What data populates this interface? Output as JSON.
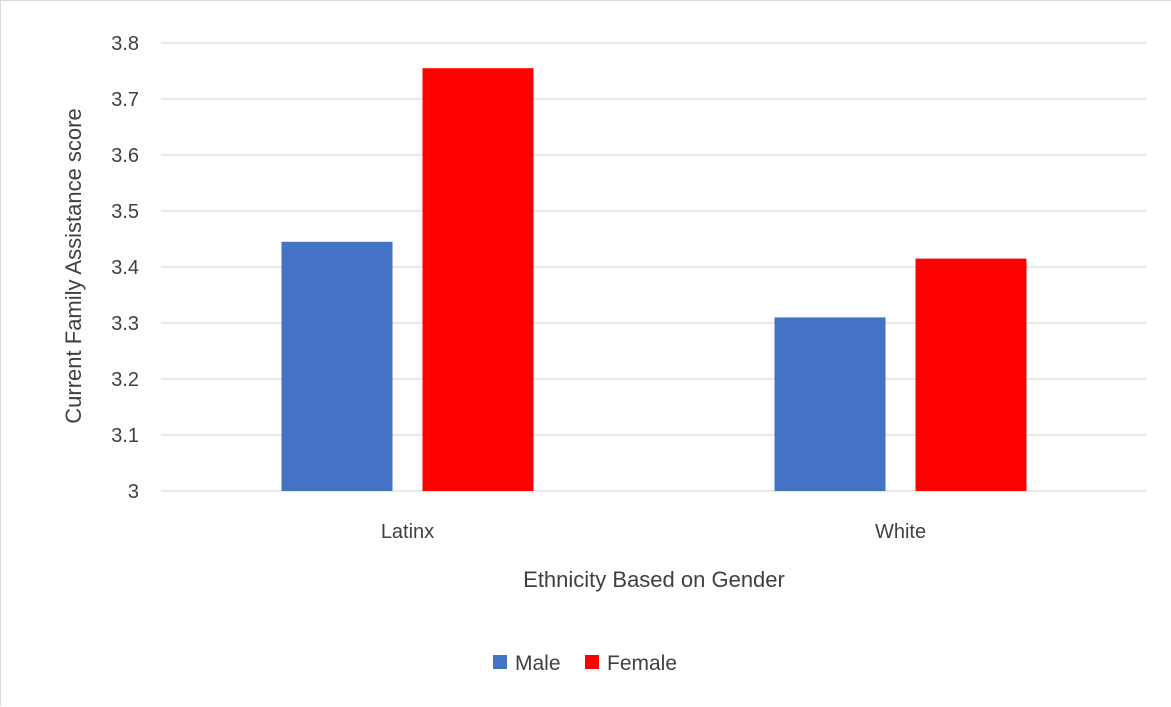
{
  "chart_data": {
    "type": "bar",
    "title": "",
    "xlabel": "Ethnicity Based on Gender",
    "ylabel": "Current Family Assistance score",
    "categories": [
      "Latinx",
      "White"
    ],
    "series": [
      {
        "name": "Male",
        "color": "#4472C4",
        "values": [
          3.445,
          3.31
        ]
      },
      {
        "name": "Female",
        "color": "#FF0000",
        "values": [
          3.755,
          3.415
        ]
      }
    ],
    "ylim": [
      3,
      3.8
    ],
    "yticks": [
      "3",
      "3.1",
      "3.2",
      "3.3",
      "3.4",
      "3.5",
      "3.6",
      "3.7",
      "3.8"
    ],
    "grid": true,
    "legend_position": "bottom"
  }
}
